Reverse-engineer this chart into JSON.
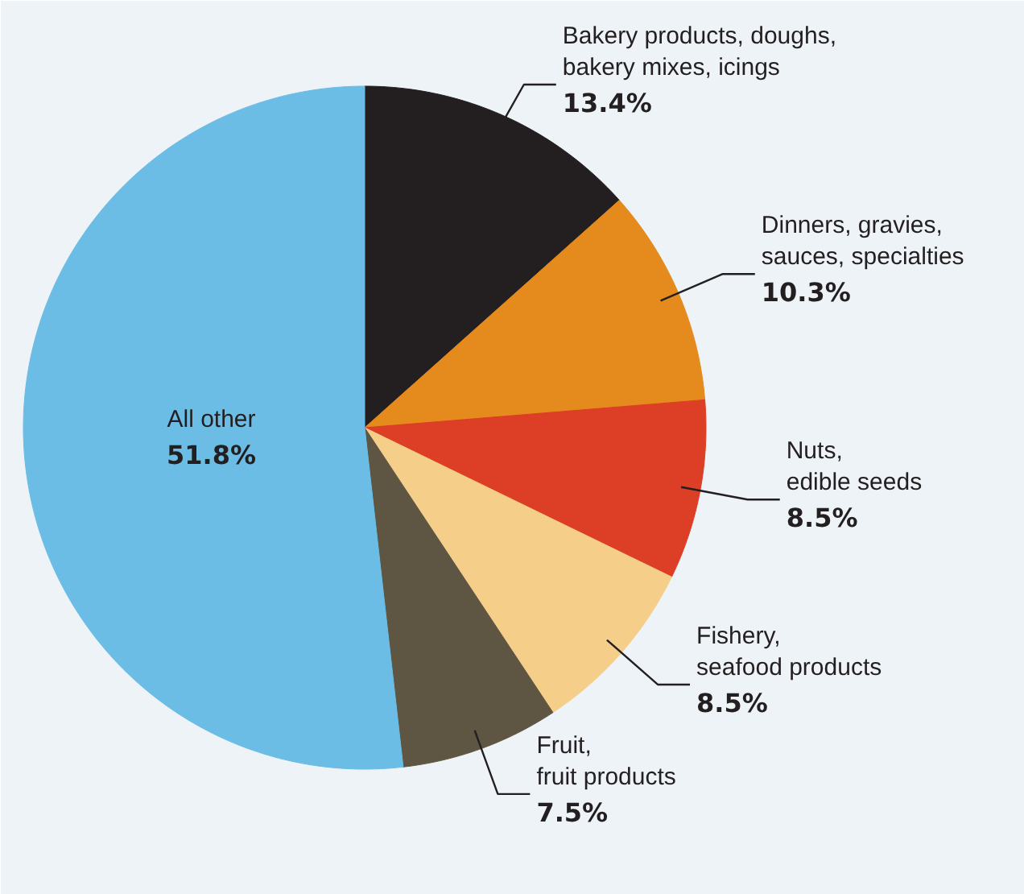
{
  "chart_data": {
    "type": "pie",
    "categories": [
      "Bakery products, doughs,\nbakery mixes, icings",
      "Dinners, gravies,\nsauces, specialties",
      "Nuts,\nedible seeds",
      "Fishery,\nseafood products",
      "Fruit,\nfruit products",
      "All other"
    ],
    "values": [
      13.4,
      10.3,
      8.5,
      8.5,
      7.5,
      51.8
    ],
    "value_labels": [
      "13.4%",
      "10.3%",
      "8.5%",
      "8.5%",
      "7.5%",
      "51.8%"
    ],
    "colors": [
      "#231f20",
      "#e58a1c",
      "#dc3e26",
      "#f5cf8a",
      "#5e5543",
      "#6bbde5"
    ]
  }
}
